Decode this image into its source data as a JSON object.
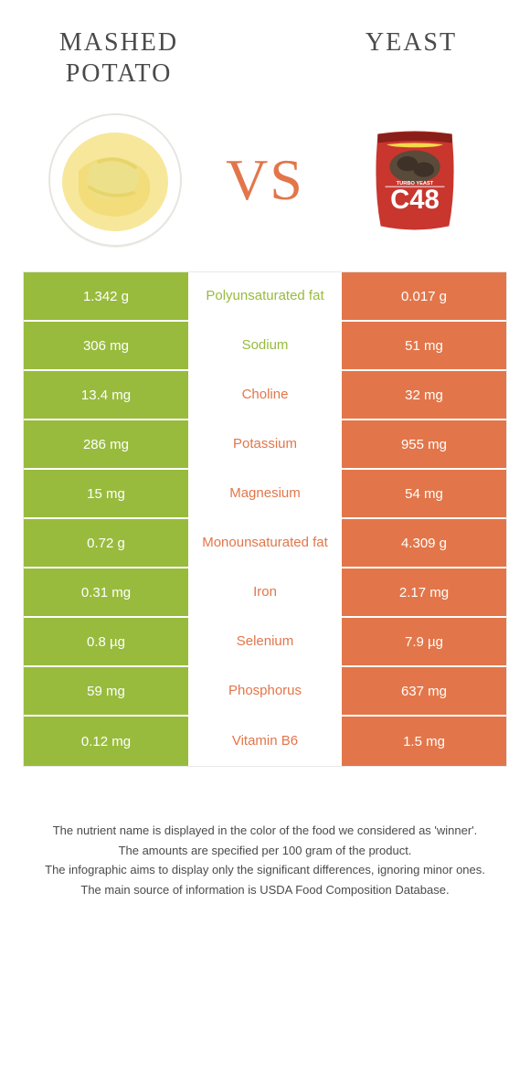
{
  "foodA": {
    "title": "MASHED POTATO",
    "color": "#98bb3e"
  },
  "foodB": {
    "title": "YEAST",
    "color": "#e2764a"
  },
  "vs": "VS",
  "rows": [
    {
      "left": "1.342 g",
      "label": "Polyunsaturated fat",
      "right": "0.017 g",
      "winner": "left"
    },
    {
      "left": "306 mg",
      "label": "Sodium",
      "right": "51 mg",
      "winner": "left"
    },
    {
      "left": "13.4 mg",
      "label": "Choline",
      "right": "32 mg",
      "winner": "right"
    },
    {
      "left": "286 mg",
      "label": "Potassium",
      "right": "955 mg",
      "winner": "right"
    },
    {
      "left": "15 mg",
      "label": "Magnesium",
      "right": "54 mg",
      "winner": "right"
    },
    {
      "left": "0.72 g",
      "label": "Monounsaturated fat",
      "right": "4.309 g",
      "winner": "right"
    },
    {
      "left": "0.31 mg",
      "label": "Iron",
      "right": "2.17 mg",
      "winner": "right"
    },
    {
      "left": "0.8 µg",
      "label": "Selenium",
      "right": "7.9 µg",
      "winner": "right"
    },
    {
      "left": "59 mg",
      "label": "Phosphorus",
      "right": "637 mg",
      "winner": "right"
    },
    {
      "left": "0.12 mg",
      "label": "Vitamin B6",
      "right": "1.5 mg",
      "winner": "right"
    }
  ],
  "footer": [
    "The nutrient name is displayed in the color of the food we considered as 'winner'.",
    "The amounts are specified per 100 gram of the product.",
    "The infographic aims to display only the significant differences, ignoring minor ones.",
    "The main source of information is USDA Food Composition Database."
  ]
}
